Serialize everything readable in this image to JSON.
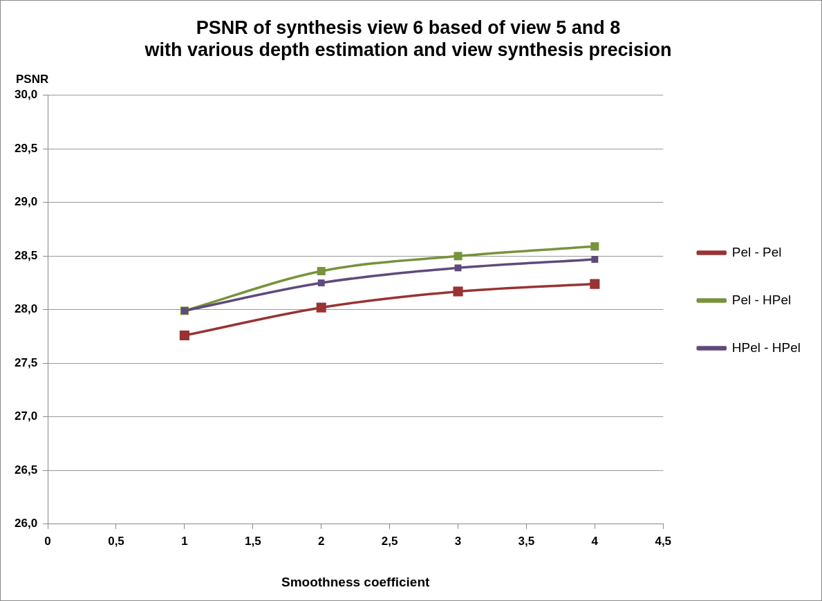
{
  "chart_data": {
    "type": "line",
    "title": "PSNR of synthesis view 6 based of view 5 and 8\nwith various depth estimation and view synthesis precision",
    "xlabel": "Smoothness coefficient",
    "ylabel": "PSNR",
    "x": [
      1,
      2,
      3,
      4
    ],
    "series": [
      {
        "name": "Pel - Pel",
        "color": "#993333",
        "values": [
          27.76,
          28.02,
          28.17,
          28.24
        ]
      },
      {
        "name": "Pel - HPel",
        "color": "#77933c",
        "values": [
          27.99,
          28.36,
          28.5,
          28.59
        ]
      },
      {
        "name": "HPel - HPel",
        "color": "#604a7b",
        "values": [
          27.99,
          28.25,
          28.39,
          28.47
        ]
      }
    ],
    "xlim": [
      0,
      4.5
    ],
    "xticks": [
      0,
      {
        "value": 0.5,
        "label": "0,5"
      },
      {
        "value": 1,
        "label": "1"
      },
      {
        "value": 1.5,
        "label": "1,5"
      },
      {
        "value": 2,
        "label": "2"
      },
      {
        "value": 2.5,
        "label": "2,5"
      },
      {
        "value": 3,
        "label": "3"
      },
      {
        "value": 3.5,
        "label": "3,5"
      },
      {
        "value": 4,
        "label": "4"
      },
      {
        "value": 4.5,
        "label": "4,5"
      }
    ],
    "ylim": [
      26,
      30
    ],
    "yticks": [
      {
        "value": 26,
        "label": "26,0"
      },
      {
        "value": 26.5,
        "label": "26,5"
      },
      {
        "value": 27,
        "label": "27,0"
      },
      {
        "value": 27.5,
        "label": "27,5"
      },
      {
        "value": 28,
        "label": "28,0"
      },
      {
        "value": 28.5,
        "label": "28,5"
      },
      {
        "value": 29,
        "label": "29,0"
      },
      {
        "value": 29.5,
        "label": "29,5"
      },
      {
        "value": 30,
        "label": "30,0"
      }
    ],
    "grid": "y",
    "legend": "right",
    "marker": "square",
    "line_style": "solid"
  }
}
